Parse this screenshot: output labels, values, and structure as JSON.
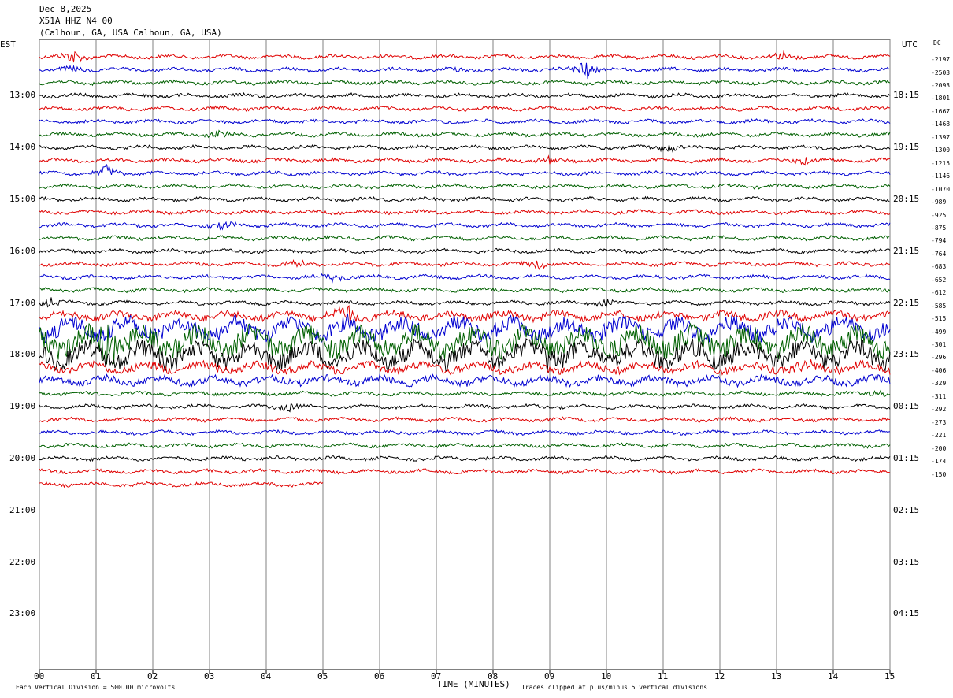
{
  "header": {
    "date": "Dec 8,2025",
    "station": "X51A HHZ N4 00",
    "location": "(Calhoun, GA, USA Calhoun, GA, USA)"
  },
  "axis_labels": {
    "left_tz": "EST",
    "right_tz": "UTC",
    "dc": "DC",
    "x_title": "TIME (MINUTES)",
    "scale_note": "Each Vertical Division =  500.00 microvolts",
    "clip_note": "Traces clipped at plus/minus 5 vertical divisions"
  },
  "colors": {
    "trace_cycle": [
      "#000000",
      "#e00000",
      "#0000d0",
      "#006000"
    ],
    "grid": "#808080"
  },
  "chart_data": {
    "type": "line",
    "title": "",
    "xlabel": "TIME (MINUTES)",
    "xlim": [
      0,
      15
    ],
    "x_ticks": [
      "00",
      "01",
      "02",
      "03",
      "04",
      "05",
      "06",
      "07",
      "08",
      "09",
      "10",
      "11",
      "12",
      "13",
      "14",
      "15"
    ],
    "left_hour_labels": [
      "13:00",
      "14:00",
      "15:00",
      "16:00",
      "17:00",
      "18:00",
      "19:00",
      "20:00",
      "21:00",
      "22:00",
      "23:00"
    ],
    "right_hour_labels": [
      "18:15",
      "19:15",
      "20:15",
      "21:15",
      "22:15",
      "23:15",
      "00:15",
      "01:15",
      "02:15",
      "03:15",
      "04:15"
    ],
    "dc_offsets": [
      "-2197",
      "-2503",
      "-2093",
      "-1801",
      "-1667",
      "-1468",
      "-1397",
      "-1300",
      "-1215",
      "-1146",
      "-1070",
      "-989",
      "-925",
      "-875",
      "-794",
      "-764",
      "-683",
      "-652",
      "-612",
      "-585",
      "-515",
      "-499",
      "-301",
      "-296",
      "-406",
      "-329",
      "-311",
      "-292",
      "-273",
      "-221",
      "-200",
      "-174",
      "-150"
    ],
    "trace_first_color_index": 1,
    "trace_count_full": 33,
    "partial_trace": {
      "color_index": 1,
      "end_minute": 5.0
    },
    "events": [
      {
        "trace": 0,
        "minute": 0.6,
        "amp": 14
      },
      {
        "trace": 0,
        "minute": 13.1,
        "amp": 8
      },
      {
        "trace": 1,
        "minute": 9.6,
        "amp": 22
      },
      {
        "trace": 1,
        "minute": 0.6,
        "amp": 5
      },
      {
        "trace": 1,
        "minute": 7.4,
        "amp": 4
      },
      {
        "trace": 6,
        "minute": 3.2,
        "amp": 10
      },
      {
        "trace": 7,
        "minute": 11.1,
        "amp": 8
      },
      {
        "trace": 8,
        "minute": 13.5,
        "amp": 8
      },
      {
        "trace": 8,
        "minute": 9.0,
        "amp": 7
      },
      {
        "trace": 9,
        "minute": 1.2,
        "amp": 14
      },
      {
        "trace": 13,
        "minute": 3.2,
        "amp": 10
      },
      {
        "trace": 16,
        "minute": 4.5,
        "amp": 8
      },
      {
        "trace": 16,
        "minute": 8.8,
        "amp": 8
      },
      {
        "trace": 17,
        "minute": 5.2,
        "amp": 8
      },
      {
        "trace": 19,
        "minute": 0.2,
        "amp": 10
      },
      {
        "trace": 19,
        "minute": 10.0,
        "amp": 6
      },
      {
        "trace": 20,
        "minute": 5.4,
        "amp": 18
      },
      {
        "trace": 22,
        "minute": 1.2,
        "amp": 30
      },
      {
        "trace": 23,
        "minute": 9.0,
        "amp": 18
      },
      {
        "trace": 24,
        "minute": 13.5,
        "amp": 9
      },
      {
        "trace": 26,
        "minute": 14.8,
        "amp": 8
      },
      {
        "trace": 27,
        "minute": 4.4,
        "amp": 7
      }
    ],
    "noisy_traces": [
      {
        "trace": 20,
        "amp": 6
      },
      {
        "trace": 21,
        "amp": 14
      },
      {
        "trace": 22,
        "amp": 18
      },
      {
        "trace": 23,
        "amp": 16
      },
      {
        "trace": 24,
        "amp": 7
      },
      {
        "trace": 25,
        "amp": 6
      }
    ]
  }
}
